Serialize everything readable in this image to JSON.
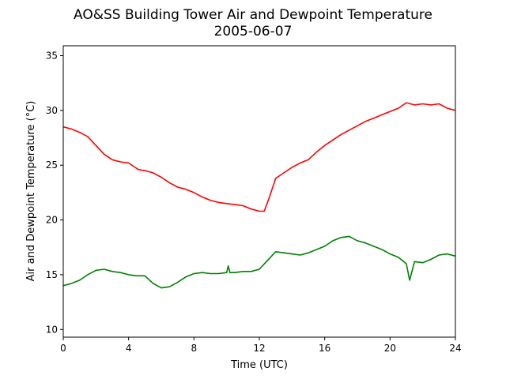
{
  "chart_data": {
    "type": "line",
    "title": "AO&SS Building Tower Air and Dewpoint Temperature",
    "subtitle": "2005-06-07",
    "xlabel": "Time (UTC)",
    "ylabel": "Air and Dewpoint Temperature (°C)",
    "xlim": [
      0,
      24
    ],
    "ylim": [
      9.3,
      35.9
    ],
    "x_ticks": [
      0,
      4,
      8,
      12,
      16,
      20,
      24
    ],
    "y_ticks": [
      10,
      15,
      20,
      25,
      30,
      35
    ],
    "grid": false,
    "legend": "none",
    "series": [
      {
        "color": "#ff0000",
        "x": [
          0,
          0.5,
          1,
          1.5,
          2,
          2.5,
          3,
          3.5,
          4,
          4.3,
          4.6,
          5,
          5.5,
          6,
          6.5,
          7,
          7.5,
          8,
          8.5,
          9,
          9.5,
          10,
          10.5,
          11,
          11.5,
          12,
          12.3,
          12.6,
          13,
          13.5,
          14,
          14.5,
          15,
          15.5,
          16,
          16.5,
          17,
          17.5,
          18,
          18.5,
          19,
          19.5,
          20,
          20.5,
          21,
          21.5,
          22,
          22.5,
          23,
          23.5,
          24
        ],
        "y": [
          28.5,
          28.3,
          28.0,
          27.6,
          26.8,
          26.0,
          25.5,
          25.3,
          25.2,
          24.9,
          24.6,
          24.5,
          24.3,
          23.9,
          23.4,
          23.0,
          22.8,
          22.5,
          22.1,
          21.8,
          21.6,
          21.5,
          21.4,
          21.3,
          21.0,
          20.8,
          20.8,
          22.0,
          23.8,
          24.3,
          24.8,
          25.2,
          25.5,
          26.2,
          26.8,
          27.3,
          27.8,
          28.2,
          28.6,
          29.0,
          29.3,
          29.6,
          29.9,
          30.2,
          30.7,
          30.5,
          30.6,
          30.5,
          30.6,
          30.2,
          30.0
        ]
      },
      {
        "color": "#008000",
        "x": [
          0,
          0.5,
          1,
          1.5,
          2,
          2.5,
          3,
          3.5,
          4,
          4.5,
          5,
          5.5,
          6,
          6.5,
          7,
          7.5,
          8,
          8.5,
          9,
          9.5,
          10,
          10.1,
          10.2,
          10.5,
          11,
          11.5,
          12,
          12.5,
          13,
          13.5,
          14,
          14.5,
          15,
          15.5,
          16,
          16.5,
          17,
          17.5,
          18,
          18.5,
          19,
          19.5,
          20,
          20.5,
          21,
          21.2,
          21.5,
          22,
          22.5,
          23,
          23.5,
          24
        ],
        "y": [
          14.0,
          14.2,
          14.5,
          15.0,
          15.4,
          15.5,
          15.3,
          15.2,
          15.0,
          14.9,
          14.9,
          14.2,
          13.8,
          13.9,
          14.3,
          14.8,
          15.1,
          15.2,
          15.1,
          15.1,
          15.2,
          15.8,
          15.2,
          15.2,
          15.3,
          15.3,
          15.5,
          16.3,
          17.1,
          17.0,
          16.9,
          16.8,
          17.0,
          17.3,
          17.6,
          18.1,
          18.4,
          18.5,
          18.1,
          17.9,
          17.6,
          17.3,
          16.9,
          16.6,
          16.0,
          14.5,
          16.2,
          16.1,
          16.4,
          16.8,
          16.9,
          16.7
        ]
      }
    ]
  }
}
